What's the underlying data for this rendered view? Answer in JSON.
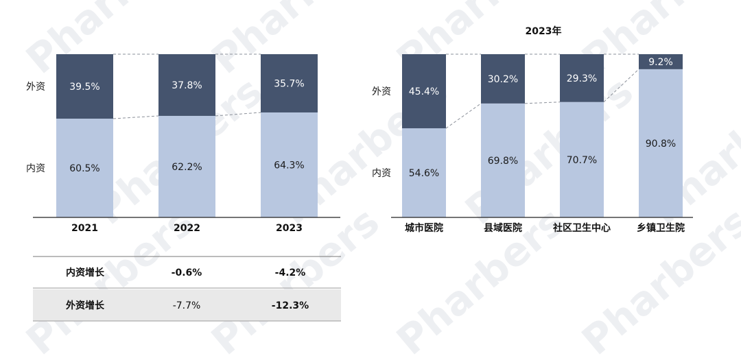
{
  "chart_data": [
    {
      "type": "bar",
      "stacked": true,
      "normalized": true,
      "categories": [
        "2021",
        "2022",
        "2023"
      ],
      "series": [
        {
          "name": "内资",
          "values": [
            60.5,
            62.2,
            64.3
          ],
          "labels": [
            "60.5%",
            "62.2%",
            "64.3%"
          ],
          "color": "#b8c7e0"
        },
        {
          "name": "外资",
          "values": [
            39.5,
            37.8,
            35.7
          ],
          "labels": [
            "39.5%",
            "37.8%",
            "35.7%"
          ],
          "color": "#45546e"
        }
      ],
      "ylim": [
        0,
        100
      ],
      "grid": false
    },
    {
      "type": "bar",
      "stacked": true,
      "normalized": true,
      "title": "2023年",
      "categories": [
        "城市医院",
        "县域医院",
        "社区卫生中心",
        "乡镇卫生院"
      ],
      "series": [
        {
          "name": "内资",
          "values": [
            54.6,
            69.8,
            70.7,
            90.8
          ],
          "labels": [
            "54.6%",
            "69.8%",
            "70.7%",
            "90.8%"
          ],
          "color": "#b8c7e0"
        },
        {
          "name": "外资",
          "values": [
            45.4,
            30.2,
            29.3,
            9.2
          ],
          "labels": [
            "45.4%",
            "30.2%",
            "29.3%",
            "9.2%"
          ],
          "color": "#45546e"
        }
      ],
      "ylim": [
        0,
        100
      ],
      "grid": false
    }
  ],
  "growth_table": {
    "rows": [
      {
        "label": "内资增长",
        "values": [
          "",
          "-0.6%",
          "-4.2%"
        ],
        "shaded": false
      },
      {
        "label": "外资增长",
        "values": [
          "",
          "-7.7%",
          "-12.3%"
        ],
        "shaded": true
      }
    ]
  },
  "watermark": "Pharbers"
}
